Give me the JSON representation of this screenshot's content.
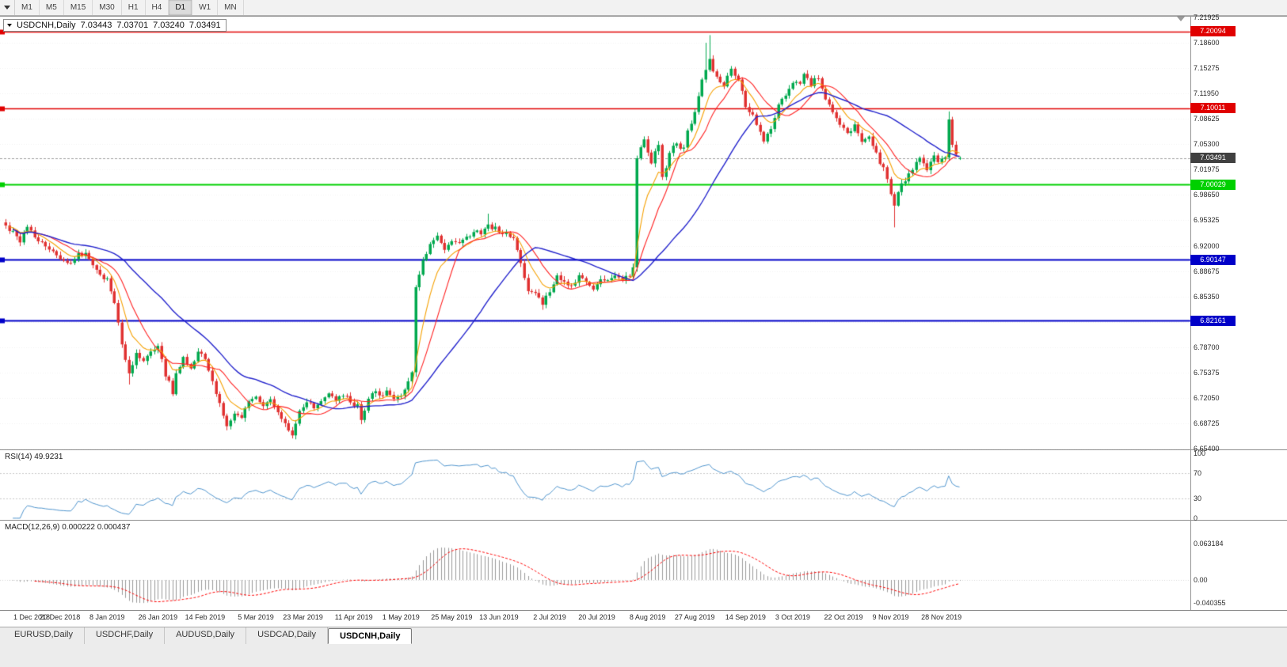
{
  "toolbar": {
    "timeframes": [
      {
        "id": "m1",
        "label": "M1",
        "active": false
      },
      {
        "id": "m5",
        "label": "M5",
        "active": false
      },
      {
        "id": "m15",
        "label": "M15",
        "active": false
      },
      {
        "id": "m30",
        "label": "M30",
        "active": false
      },
      {
        "id": "h1",
        "label": "H1",
        "active": false
      },
      {
        "id": "h4",
        "label": "H4",
        "active": false
      },
      {
        "id": "d1",
        "label": "D1",
        "active": true
      },
      {
        "id": "w1",
        "label": "W1",
        "active": false
      },
      {
        "id": "mn",
        "label": "MN",
        "active": false
      }
    ]
  },
  "chart": {
    "title": {
      "symbol": "USDCNH,Daily",
      "open": "7.03443",
      "high": "7.03701",
      "low": "7.03240",
      "close": "7.03491"
    }
  },
  "chart_data": {
    "type": "candlestick",
    "symbol": "USDCNH",
    "timeframe": "Daily",
    "bars": 264,
    "seed": 77,
    "noise": 0.007,
    "price_axis": {
      "top_value": 7.21925,
      "step": 0.03325,
      "labels": [
        "7.21925",
        "7.18600",
        "7.15275",
        "7.11950",
        "7.08625",
        "7.05300",
        "7.01975",
        "6.98650",
        "6.95325",
        "6.92000",
        "6.88675",
        "6.85350",
        "6.82025",
        "6.78700",
        "6.75375",
        "6.72050",
        "6.68725",
        "6.65400"
      ]
    },
    "anchors": [
      [
        0,
        6.947
      ],
      [
        2,
        6.938
      ],
      [
        4,
        6.927
      ],
      [
        6,
        6.942
      ],
      [
        8,
        6.934
      ],
      [
        10,
        6.922
      ],
      [
        12,
        6.915
      ],
      [
        14,
        6.908
      ],
      [
        16,
        6.903
      ],
      [
        18,
        6.898
      ],
      [
        20,
        6.907
      ],
      [
        22,
        6.912
      ],
      [
        24,
        6.897
      ],
      [
        26,
        6.884
      ],
      [
        28,
        6.875
      ],
      [
        30,
        6.845
      ],
      [
        32,
        6.792
      ],
      [
        34,
        6.752
      ],
      [
        36,
        6.778
      ],
      [
        38,
        6.768
      ],
      [
        40,
        6.782
      ],
      [
        42,
        6.79
      ],
      [
        44,
        6.752
      ],
      [
        46,
        6.728
      ],
      [
        47,
        6.75
      ],
      [
        49,
        6.772
      ],
      [
        51,
        6.76
      ],
      [
        53,
        6.78
      ],
      [
        55,
        6.772
      ],
      [
        57,
        6.742
      ],
      [
        59,
        6.712
      ],
      [
        61,
        6.684
      ],
      [
        63,
        6.7
      ],
      [
        65,
        6.694
      ],
      [
        67,
        6.716
      ],
      [
        69,
        6.722
      ],
      [
        71,
        6.71
      ],
      [
        73,
        6.718
      ],
      [
        75,
        6.702
      ],
      [
        77,
        6.69
      ],
      [
        79,
        6.672
      ],
      [
        81,
        6.704
      ],
      [
        83,
        6.716
      ],
      [
        85,
        6.71
      ],
      [
        87,
        6.714
      ],
      [
        89,
        6.726
      ],
      [
        91,
        6.718
      ],
      [
        93,
        6.723
      ],
      [
        95,
        6.716
      ],
      [
        97,
        6.71
      ],
      [
        98,
        6.694
      ],
      [
        100,
        6.72
      ],
      [
        101,
        6.73
      ],
      [
        103,
        6.724
      ],
      [
        105,
        6.729
      ],
      [
        107,
        6.722
      ],
      [
        109,
        6.726
      ],
      [
        111,
        6.74
      ],
      [
        112,
        6.752
      ],
      [
        113,
        6.868
      ],
      [
        114,
        6.882
      ],
      [
        115,
        6.898
      ],
      [
        117,
        6.92
      ],
      [
        119,
        6.933
      ],
      [
        121,
        6.918
      ],
      [
        123,
        6.928
      ],
      [
        125,
        6.922
      ],
      [
        127,
        6.93
      ],
      [
        129,
        6.94
      ],
      [
        131,
        6.936
      ],
      [
        133,
        6.948
      ],
      [
        135,
        6.942
      ],
      [
        137,
        6.936
      ],
      [
        139,
        6.934
      ],
      [
        140,
        6.928
      ],
      [
        142,
        6.895
      ],
      [
        144,
        6.862
      ],
      [
        146,
        6.855
      ],
      [
        148,
        6.846
      ],
      [
        150,
        6.862
      ],
      [
        152,
        6.878
      ],
      [
        154,
        6.872
      ],
      [
        156,
        6.866
      ],
      [
        158,
        6.878
      ],
      [
        160,
        6.87
      ],
      [
        162,
        6.864
      ],
      [
        164,
        6.876
      ],
      [
        166,
        6.872
      ],
      [
        168,
        6.88
      ],
      [
        170,
        6.876
      ],
      [
        172,
        6.882
      ],
      [
        173,
        6.89
      ],
      [
        174,
        7.036
      ],
      [
        175,
        7.052
      ],
      [
        176,
        7.058
      ],
      [
        177,
        7.04
      ],
      [
        178,
        7.028
      ],
      [
        179,
        7.044
      ],
      [
        180,
        7.052
      ],
      [
        181,
        7.008
      ],
      [
        182,
        7.022
      ],
      [
        183,
        7.042
      ],
      [
        184,
        7.05
      ],
      [
        185,
        7.056
      ],
      [
        186,
        7.044
      ],
      [
        187,
        7.05
      ],
      [
        188,
        7.068
      ],
      [
        189,
        7.082
      ],
      [
        190,
        7.098
      ],
      [
        191,
        7.118
      ],
      [
        192,
        7.138
      ],
      [
        193,
        7.152
      ],
      [
        194,
        7.164
      ],
      [
        195,
        7.15
      ],
      [
        196,
        7.142
      ],
      [
        197,
        7.132
      ],
      [
        198,
        7.128
      ],
      [
        199,
        7.142
      ],
      [
        200,
        7.154
      ],
      [
        201,
        7.146
      ],
      [
        202,
        7.138
      ],
      [
        203,
        7.12
      ],
      [
        204,
        7.104
      ],
      [
        205,
        7.098
      ],
      [
        206,
        7.094
      ],
      [
        207,
        7.08
      ],
      [
        208,
        7.068
      ],
      [
        209,
        7.06
      ],
      [
        210,
        7.064
      ],
      [
        211,
        7.076
      ],
      [
        212,
        7.09
      ],
      [
        213,
        7.102
      ],
      [
        214,
        7.112
      ],
      [
        215,
        7.118
      ],
      [
        216,
        7.124
      ],
      [
        217,
        7.13
      ],
      [
        218,
        7.136
      ],
      [
        219,
        7.13
      ],
      [
        220,
        7.146
      ],
      [
        221,
        7.138
      ],
      [
        222,
        7.128
      ],
      [
        223,
        7.136
      ],
      [
        224,
        7.142
      ],
      [
        225,
        7.128
      ],
      [
        226,
        7.112
      ],
      [
        227,
        7.102
      ],
      [
        228,
        7.094
      ],
      [
        229,
        7.086
      ],
      [
        230,
        7.078
      ],
      [
        231,
        7.072
      ],
      [
        232,
        7.066
      ],
      [
        233,
        7.07
      ],
      [
        234,
        7.076
      ],
      [
        235,
        7.066
      ],
      [
        236,
        7.058
      ],
      [
        237,
        7.062
      ],
      [
        238,
        7.066
      ],
      [
        239,
        7.054
      ],
      [
        240,
        7.042
      ],
      [
        241,
        7.03
      ],
      [
        242,
        7.022
      ],
      [
        243,
        7.006
      ],
      [
        244,
        6.986
      ],
      [
        245,
        6.972
      ],
      [
        246,
        6.992
      ],
      [
        247,
        7.0
      ],
      [
        248,
        7.006
      ],
      [
        249,
        7.012
      ],
      [
        250,
        7.02
      ],
      [
        251,
        7.028
      ],
      [
        252,
        7.036
      ],
      [
        253,
        7.028
      ],
      [
        254,
        7.022
      ],
      [
        255,
        7.032
      ],
      [
        256,
        7.038
      ],
      [
        257,
        7.03
      ],
      [
        258,
        7.034
      ],
      [
        259,
        7.038
      ],
      [
        260,
        7.085
      ],
      [
        261,
        7.052
      ],
      [
        262,
        7.042
      ],
      [
        263,
        7.0349
      ]
    ],
    "wicks": [
      {
        "i": 34,
        "low": 6.738
      },
      {
        "i": 61,
        "low": 6.678
      },
      {
        "i": 79,
        "low": 6.668
      },
      {
        "i": 98,
        "low": 6.686
      },
      {
        "i": 113,
        "low": 6.748
      },
      {
        "i": 133,
        "high": 6.962
      },
      {
        "i": 148,
        "low": 6.836
      },
      {
        "i": 174,
        "low": 6.886
      },
      {
        "i": 193,
        "high": 7.186
      },
      {
        "i": 194,
        "high": 7.196
      },
      {
        "i": 245,
        "low": 6.944
      },
      {
        "i": 260,
        "high": 7.096
      }
    ],
    "last_candle": {
      "open": 7.03443,
      "high": 7.03701,
      "low": 7.0324,
      "close": 7.03491
    },
    "candle_colors": {
      "up": "#00a84e",
      "down": "#e03030"
    },
    "moving_averages": [
      {
        "name": "fast",
        "method": "ema",
        "period": 8,
        "color": "#f5a000",
        "width": 1.1
      },
      {
        "name": "mid",
        "method": "sma",
        "period": 13,
        "color": "#ff2020",
        "width": 1.1
      },
      {
        "name": "slow",
        "method": "sma",
        "period": 34,
        "color": "#2222cc",
        "width": 1.4
      }
    ],
    "hlines": [
      {
        "value": 7.20094,
        "label": "7.20094",
        "color": "#e00000",
        "width": 1.3
      },
      {
        "value": 7.10011,
        "label": "7.10011",
        "color": "#e00000",
        "width": 1.3
      },
      {
        "value": 7.00029,
        "label": "7.00029",
        "color": "#00d000",
        "width": 1.8
      },
      {
        "value": 6.90147,
        "label": "6.90147",
        "color": "#0000c8",
        "width": 1.8
      },
      {
        "value": 6.82161,
        "label": "6.82161",
        "color": "#0000c8",
        "width": 1.8
      }
    ],
    "current_price": {
      "value": 7.03491,
      "label": "7.03491",
      "tag_bg": "#404040",
      "line_color": "#a0a0a0"
    },
    "date_labels": [
      {
        "i": 1,
        "label": "1 Dec 2018"
      },
      {
        "i": 15,
        "label": "20 Dec 2018"
      },
      {
        "i": 28,
        "label": "8 Jan 2019"
      },
      {
        "i": 42,
        "label": "26 Jan 2019"
      },
      {
        "i": 55,
        "label": "14 Feb 2019"
      },
      {
        "i": 69,
        "label": "5 Mar 2019"
      },
      {
        "i": 82,
        "label": "23 Mar 2019"
      },
      {
        "i": 96,
        "label": "11 Apr 2019"
      },
      {
        "i": 109,
        "label": "1 May 2019"
      },
      {
        "i": 123,
        "label": "25 May 2019"
      },
      {
        "i": 136,
        "label": "13 Jun 2019"
      },
      {
        "i": 150,
        "label": "2 Jul 2019"
      },
      {
        "i": 163,
        "label": "20 Jul 2019"
      },
      {
        "i": 177,
        "label": "8 Aug 2019"
      },
      {
        "i": 190,
        "label": "27 Aug 2019"
      },
      {
        "i": 204,
        "label": "14 Sep 2019"
      },
      {
        "i": 217,
        "label": "3 Oct 2019"
      },
      {
        "i": 231,
        "label": "22 Oct 2019"
      },
      {
        "i": 244,
        "label": "9 Nov 2019"
      },
      {
        "i": 258,
        "label": "28 Nov 2019"
      }
    ]
  },
  "rsi": {
    "label": "RSI(14) 49.9231",
    "period": 14,
    "value": 49.9231,
    "color": "#4f94cd",
    "axis_values": [
      100,
      70,
      30,
      0
    ],
    "axis_labels": [
      "100",
      "70",
      "30",
      "0"
    ],
    "level_lines": [
      70,
      30
    ]
  },
  "macd": {
    "label": "MACD(12,26,9) 0.000222 0.000437",
    "params": "12,26,9",
    "macd_value": 0.000222,
    "signal_value": 0.000437,
    "hist_color": "#9a9a9a",
    "signal_color": "#ff0000",
    "axis_values": [
      0.063184,
      0,
      -0.040355
    ],
    "axis_labels": [
      "0.063184",
      "0.00",
      "-0.040355"
    ]
  },
  "tabs": [
    {
      "label": "EURUSD,Daily",
      "active": false
    },
    {
      "label": "USDCHF,Daily",
      "active": false
    },
    {
      "label": "AUDUSD,Daily",
      "active": false
    },
    {
      "label": "USDCAD,Daily",
      "active": false
    },
    {
      "label": "USDCNH,Daily",
      "active": true
    }
  ]
}
